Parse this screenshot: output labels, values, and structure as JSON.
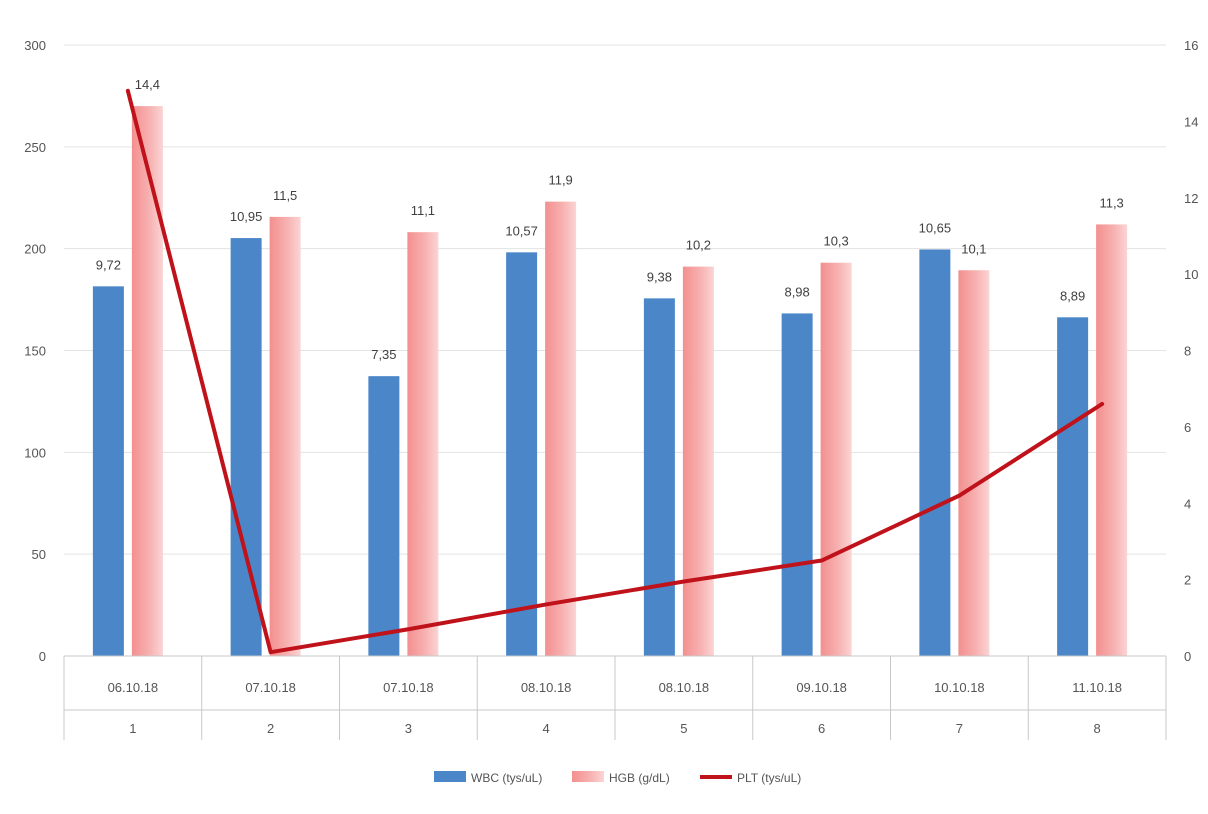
{
  "chart_data": {
    "type": "bar",
    "categories": [
      "06.10.18",
      "07.10.18",
      "07.10.18",
      "08.10.18",
      "08.10.18",
      "09.10.18",
      "10.10.18",
      "11.10.18"
    ],
    "sub_categories": [
      "1",
      "2",
      "3",
      "4",
      "5",
      "6",
      "7",
      "8"
    ],
    "series": [
      {
        "name": "WBC (tys/uL)",
        "kind": "bar",
        "axis": "left",
        "color": "#4a86c8",
        "values": [
          181.5,
          205.2,
          137.4,
          198.2,
          175.6,
          168.2,
          199.6,
          166.3
        ],
        "labels": [
          "9,72",
          "10,95",
          "7,35",
          "10,57",
          "9,38",
          "8,98",
          "10,65",
          "8,89"
        ]
      },
      {
        "name": "HGB (g/dL)",
        "kind": "bar",
        "axis": "left",
        "color": "#f4a3a3",
        "values": [
          270.0,
          215.6,
          208.1,
          223.1,
          191.2,
          193.1,
          189.4,
          211.9
        ],
        "labels": [
          "14,4",
          "11,5",
          "11,1",
          "11,9",
          "10,2",
          "10,3",
          "10,1",
          "11,3"
        ]
      },
      {
        "name": "PLT (tys/uL)",
        "kind": "line",
        "axis": "right",
        "color": "#c0121a",
        "values": [
          14.8,
          0.1,
          0.7,
          1.35,
          1.95,
          2.5,
          4.2,
          6.6
        ]
      }
    ],
    "ylim_left": [
      0,
      300
    ],
    "yticks_left": [
      "0",
      "50",
      "100",
      "150",
      "200",
      "250",
      "300"
    ],
    "ylim_right": [
      0,
      16
    ],
    "yticks_right": [
      "0",
      "2",
      "4",
      "6",
      "8",
      "10",
      "12",
      "14",
      "16"
    ],
    "grid": true,
    "legend_position": "bottom",
    "title": "",
    "xlabel": "",
    "ylabel": ""
  }
}
